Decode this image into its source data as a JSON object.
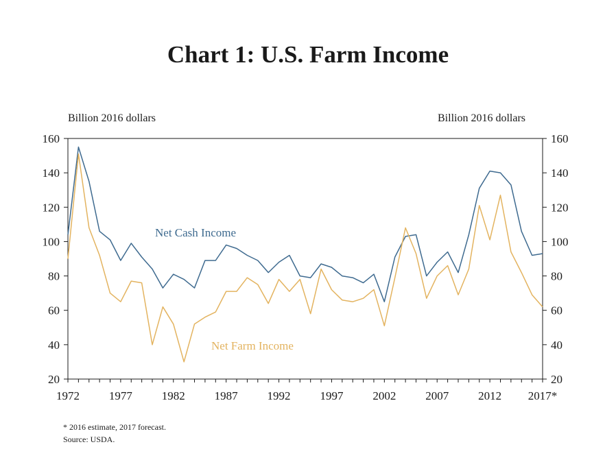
{
  "title": "Chart 1: U.S. Farm Income",
  "left_unit": "Billion 2016 dollars",
  "right_unit": "Billion 2016 dollars",
  "notes": {
    "footnote": "* 2016 estimate, 2017 forecast.",
    "source": "Source: USDA."
  },
  "colors": {
    "net_cash_income": "#3e6a8f",
    "net_farm_income": "#e3b35f",
    "axis": "#1a1a1a"
  },
  "chart_data": {
    "type": "line",
    "x_tick_labels": [
      "1972",
      "1977",
      "1982",
      "1987",
      "1992",
      "1997",
      "2002",
      "2007",
      "2012",
      "2017*"
    ],
    "x_tick_years": [
      1972,
      1977,
      1982,
      1987,
      1992,
      1997,
      2002,
      2007,
      2012,
      2017
    ],
    "xlim": [
      1972,
      2017
    ],
    "ylim": [
      20,
      160
    ],
    "y_ticks": [
      20,
      40,
      60,
      80,
      100,
      120,
      140,
      160
    ],
    "y_axes": [
      "left",
      "right"
    ],
    "grid": false,
    "legend": "inline labels",
    "x": [
      1972,
      1973,
      1974,
      1975,
      1976,
      1977,
      1978,
      1979,
      1980,
      1981,
      1982,
      1983,
      1984,
      1985,
      1986,
      1987,
      1988,
      1989,
      1990,
      1991,
      1992,
      1993,
      1994,
      1995,
      1996,
      1997,
      1998,
      1999,
      2000,
      2001,
      2002,
      2003,
      2004,
      2005,
      2006,
      2007,
      2008,
      2009,
      2010,
      2011,
      2012,
      2013,
      2014,
      2015,
      2016,
      2017
    ],
    "series": [
      {
        "name": "Net Cash Income",
        "values": [
          104,
          155,
          135,
          106,
          101,
          89,
          99,
          91,
          84,
          73,
          81,
          78,
          73,
          89,
          89,
          98,
          96,
          92,
          89,
          82,
          88,
          92,
          80,
          79,
          87,
          85,
          80,
          79,
          76,
          81,
          65,
          91,
          103,
          104,
          80,
          88,
          94,
          82,
          104,
          131,
          141,
          140,
          133,
          106,
          92,
          93
        ]
      },
      {
        "name": "Net Farm Income",
        "values": [
          90,
          151,
          108,
          92,
          70,
          65,
          77,
          76,
          40,
          62,
          52,
          30,
          52,
          56,
          59,
          71,
          71,
          79,
          75,
          64,
          78,
          71,
          78,
          58,
          84,
          72,
          66,
          65,
          67,
          72,
          51,
          79,
          108,
          93,
          67,
          80,
          86,
          69,
          84,
          121,
          101,
          127,
          94,
          82,
          69,
          62
        ]
      }
    ],
    "annotations": [
      {
        "text": "Net Cash Income",
        "series": "Net Cash Income"
      },
      {
        "text": "Net Farm Income",
        "series": "Net Farm Income"
      }
    ]
  }
}
